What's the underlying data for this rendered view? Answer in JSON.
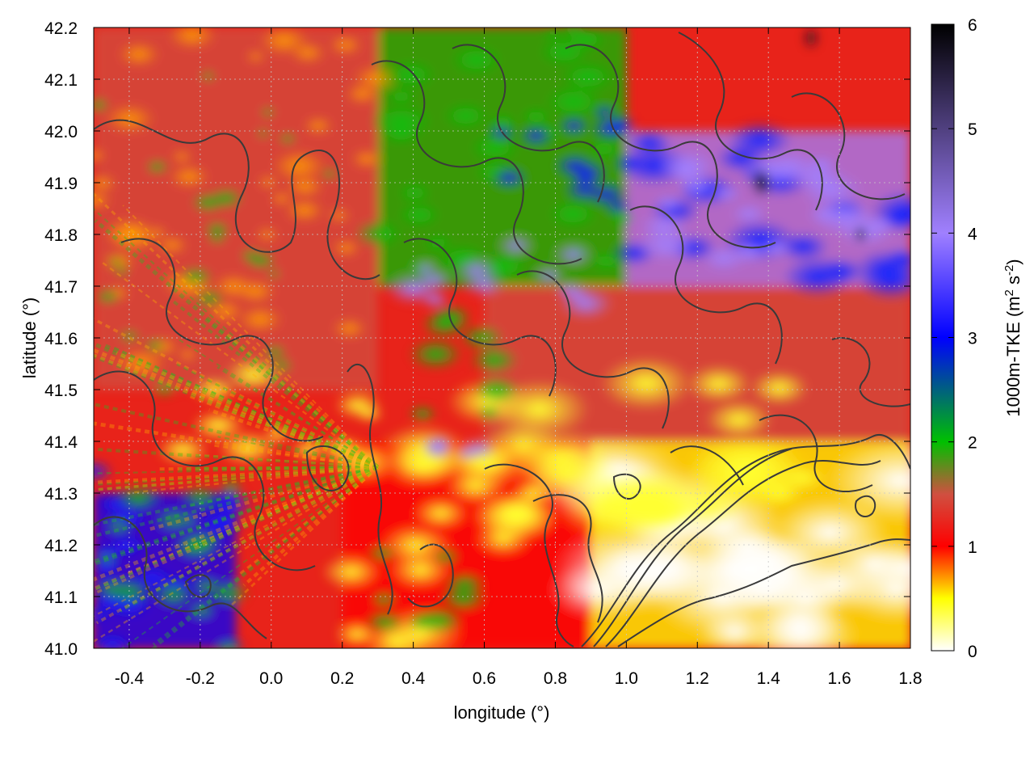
{
  "chart_data": {
    "type": "heatmap",
    "title": "",
    "xlabel": "longitude (°)",
    "ylabel": "latitude (°)",
    "xlim": [
      -0.5,
      1.8
    ],
    "ylim": [
      41.0,
      42.2
    ],
    "x_ticks": [
      {
        "value": -0.4,
        "label": "-0.4"
      },
      {
        "value": -0.2,
        "label": "-0.2"
      },
      {
        "value": 0.0,
        "label": "0.0"
      },
      {
        "value": 0.2,
        "label": "0.2"
      },
      {
        "value": 0.4,
        "label": "0.4"
      },
      {
        "value": 0.6,
        "label": "0.6"
      },
      {
        "value": 0.8,
        "label": "0.8"
      },
      {
        "value": 1.0,
        "label": "1.0"
      },
      {
        "value": 1.2,
        "label": "1.2"
      },
      {
        "value": 1.4,
        "label": "1.4"
      },
      {
        "value": 1.6,
        "label": "1.6"
      },
      {
        "value": 1.8,
        "label": "1.8"
      }
    ],
    "y_ticks": [
      {
        "value": 41.0,
        "label": "41.0"
      },
      {
        "value": 41.1,
        "label": "41.1"
      },
      {
        "value": 41.2,
        "label": "41.2"
      },
      {
        "value": 41.3,
        "label": "41.3"
      },
      {
        "value": 41.4,
        "label": "41.4"
      },
      {
        "value": 41.5,
        "label": "41.5"
      },
      {
        "value": 41.6,
        "label": "41.6"
      },
      {
        "value": 41.7,
        "label": "41.7"
      },
      {
        "value": 41.8,
        "label": "41.8"
      },
      {
        "value": 41.9,
        "label": "41.9"
      },
      {
        "value": 42.0,
        "label": "42.0"
      },
      {
        "value": 42.1,
        "label": "42.1"
      },
      {
        "value": 42.2,
        "label": "42.2"
      }
    ],
    "grid": true,
    "colorbar": {
      "label": "1000m-TKE (m² s⁻²)",
      "label_main": "1000m-TKE (m",
      "label_sup1": "2",
      "label_mid": " s",
      "label_sup2": "-2",
      "label_end": ")",
      "range": [
        0,
        6
      ],
      "ticks": [
        {
          "value": 0,
          "label": "0"
        },
        {
          "value": 1,
          "label": "1"
        },
        {
          "value": 2,
          "label": "2"
        },
        {
          "value": 3,
          "label": "3"
        },
        {
          "value": 4,
          "label": "4"
        },
        {
          "value": 5,
          "label": "5"
        },
        {
          "value": 6,
          "label": "6"
        }
      ],
      "stops": [
        {
          "value": 0.0,
          "color": "#ffffff"
        },
        {
          "value": 0.5,
          "color": "#ffff00"
        },
        {
          "value": 1.0,
          "color": "#ff0000"
        },
        {
          "value": 1.5,
          "color": "#d05040"
        },
        {
          "value": 2.0,
          "color": "#00c000"
        },
        {
          "value": 3.0,
          "color": "#0000ff"
        },
        {
          "value": 4.0,
          "color": "#a080ff"
        },
        {
          "value": 5.0,
          "color": "#504080"
        },
        {
          "value": 6.0,
          "color": "#000000"
        }
      ]
    },
    "field_regions": [
      {
        "region": "northwest",
        "lon": [
          -0.5,
          0.3
        ],
        "lat": [
          41.5,
          42.2
        ],
        "approx_tke": 1.1
      },
      {
        "region": "southwest edge",
        "lon": [
          -0.5,
          -0.1
        ],
        "lat": [
          41.0,
          41.3
        ],
        "approx_tke": 2.5
      },
      {
        "region": "north-central",
        "lon": [
          0.3,
          1.0
        ],
        "lat": [
          41.7,
          42.2
        ],
        "approx_tke": 2.0
      },
      {
        "region": "northeast band",
        "lon": [
          1.0,
          1.8
        ],
        "lat": [
          41.7,
          42.0
        ],
        "approx_tke": 3.6
      },
      {
        "region": "east-central",
        "lon": [
          0.6,
          1.8
        ],
        "lat": [
          41.4,
          41.7
        ],
        "approx_tke": 1.3
      },
      {
        "region": "southeast",
        "lon": [
          0.9,
          1.8
        ],
        "lat": [
          41.0,
          41.4
        ],
        "approx_tke": 0.1
      },
      {
        "region": "south-central",
        "lon": [
          0.2,
          0.9
        ],
        "lat": [
          41.0,
          41.4
        ],
        "approx_tke": 0.7
      }
    ],
    "contours": "terrain height contours (dark grey lines)"
  }
}
